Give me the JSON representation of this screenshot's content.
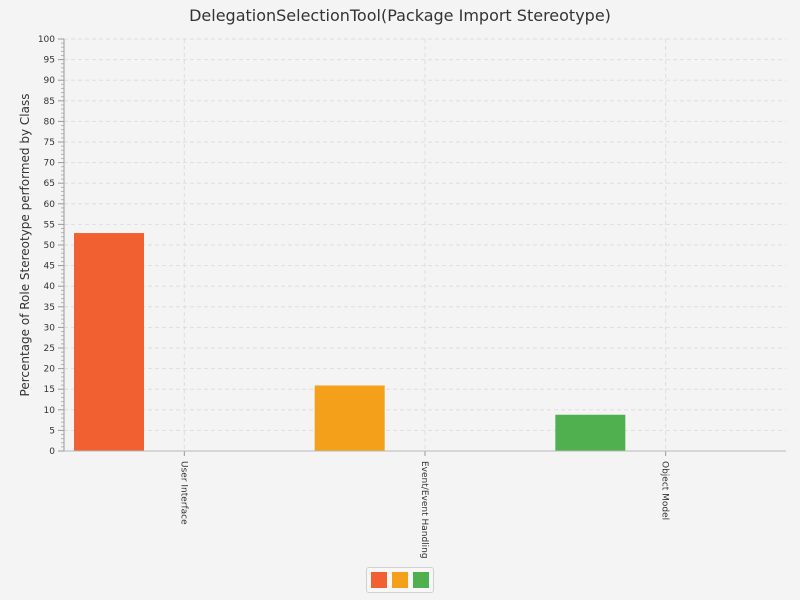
{
  "chart_data": {
    "type": "bar",
    "title": "DelegationSelectionTool(Package Import Stereotype)",
    "ylabel": "Percentage of Role Stereotype performed by Class",
    "xlabel": "",
    "ylim": [
      0,
      100
    ],
    "ytick_step": 5,
    "grid": true,
    "legend_placement": "bottom-center",
    "categories": [
      "User Interface",
      "Event/Event Handling",
      "Object Model"
    ],
    "values": [
      52.9,
      15.9,
      8.8
    ],
    "colors": [
      "#f06030",
      "#f5a01a",
      "#50b050"
    ]
  }
}
